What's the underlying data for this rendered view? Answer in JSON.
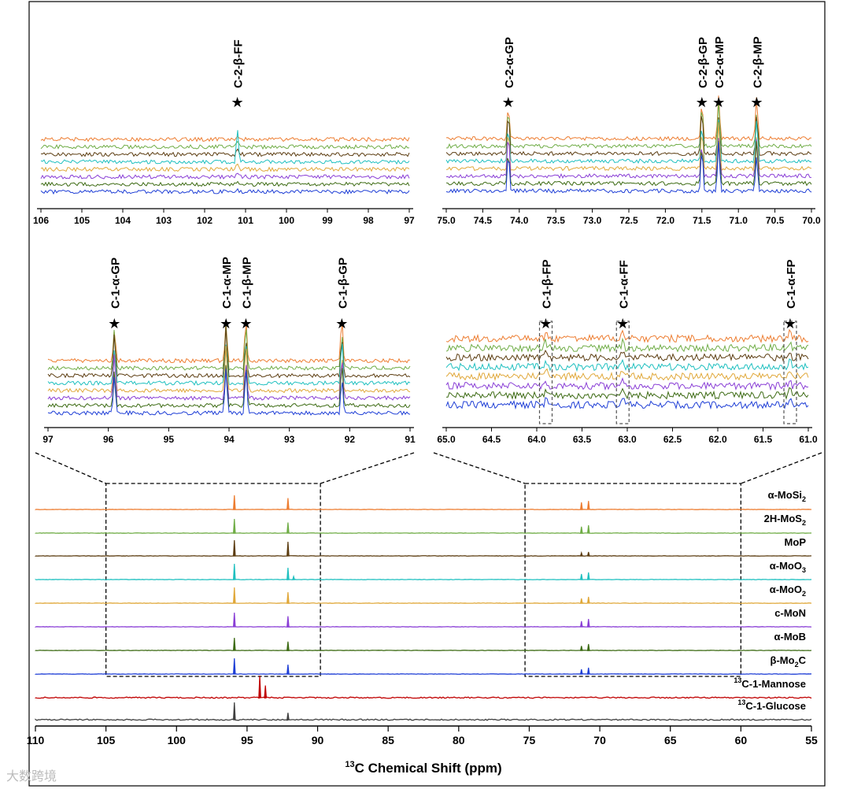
{
  "figure": {
    "xlabel_sup": "13",
    "xlabel_main": "C Chemical Shift (ppm)",
    "watermark": "大数跨境"
  },
  "chart_data": [
    {
      "type": "line",
      "panel": "main",
      "xlim": [
        110,
        55
      ],
      "xticks": [
        110,
        105,
        100,
        95,
        90,
        85,
        80,
        75,
        70,
        65,
        60,
        55
      ],
      "xlabel": "13C Chemical Shift (ppm)",
      "series": [
        {
          "name": "α-MoSi2",
          "label_main": "α-MoSi",
          "label_sub": "2",
          "color": "#ED7D31",
          "peaks": [
            [
              95.9,
              1.0
            ],
            [
              92.1,
              0.8
            ],
            [
              71.3,
              0.5
            ],
            [
              70.8,
              0.6
            ]
          ]
        },
        {
          "name": "2H-MoS2",
          "label_main": "2H-MoS",
          "label_sub": "2",
          "color": "#70AD47",
          "peaks": [
            [
              95.9,
              1.0
            ],
            [
              92.1,
              0.75
            ],
            [
              71.3,
              0.45
            ],
            [
              70.8,
              0.55
            ]
          ]
        },
        {
          "name": "MoP",
          "label_main": "MoP",
          "label_sub": "",
          "color": "#5C3D11",
          "peaks": [
            [
              95.9,
              1.0
            ],
            [
              92.1,
              0.9
            ],
            [
              71.3,
              0.2
            ],
            [
              70.8,
              0.25
            ]
          ]
        },
        {
          "name": "α-MoO3",
          "label_main": "α-MoO",
          "label_sub": "3",
          "color": "#20C0C0",
          "peaks": [
            [
              95.9,
              1.0
            ],
            [
              92.1,
              0.75
            ],
            [
              91.7,
              0.2
            ],
            [
              71.3,
              0.35
            ],
            [
              70.8,
              0.45
            ]
          ]
        },
        {
          "name": "α-MoO2",
          "label_main": "α-MoO",
          "label_sub": "2",
          "color": "#E0A83A",
          "peaks": [
            [
              95.9,
              1.0
            ],
            [
              92.1,
              0.7
            ],
            [
              71.3,
              0.3
            ],
            [
              70.8,
              0.4
            ]
          ]
        },
        {
          "name": "c-MoN",
          "label_main": "c-MoN",
          "label_sub": "",
          "color": "#8A3FD6",
          "peaks": [
            [
              95.9,
              1.0
            ],
            [
              92.1,
              0.75
            ],
            [
              71.3,
              0.4
            ],
            [
              70.8,
              0.55
            ]
          ]
        },
        {
          "name": "α-MoB",
          "label_main": "α-MoB",
          "label_sub": "",
          "color": "#3D6B14",
          "peaks": [
            [
              95.9,
              1.0
            ],
            [
              92.1,
              0.7
            ],
            [
              71.3,
              0.35
            ],
            [
              70.8,
              0.5
            ]
          ]
        },
        {
          "name": "β-Mo2C",
          "label_main": "β-Mo",
          "label_sub": "2",
          "label_tail": "C",
          "color": "#1F3FD6",
          "peaks": [
            [
              95.9,
              1.0
            ],
            [
              92.1,
              0.6
            ],
            [
              71.3,
              0.3
            ],
            [
              70.8,
              0.4
            ]
          ]
        },
        {
          "name": "13C-1-Mannose",
          "label_sup": "13",
          "label_main": "C-1-Mannose",
          "color": "#C00000",
          "peaks": [
            [
              94.1,
              1.0
            ],
            [
              93.7,
              0.55
            ]
          ]
        },
        {
          "name": "13C-1-Glucose",
          "label_sup": "13",
          "label_main": "C-1-Glucose",
          "color": "#404040",
          "peaks": [
            [
              95.9,
              1.0
            ],
            [
              92.1,
              0.4
            ]
          ]
        }
      ],
      "zoom_boxes": [
        [
          105,
          89.8
        ],
        [
          75.3,
          60
        ]
      ]
    },
    {
      "type": "line",
      "panel": "inset-c2-beta-ff",
      "xlim": [
        106,
        97
      ],
      "xticks": [
        106,
        105,
        104,
        103,
        102,
        101,
        100,
        99,
        98,
        97
      ],
      "annotations": [
        {
          "label": "C-2-β-FF",
          "x": 101.2
        }
      ]
    },
    {
      "type": "line",
      "panel": "inset-c2-glucose-mannose",
      "xlim": [
        75.0,
        70.0
      ],
      "xticks": [
        "75.0",
        "74.5",
        "74.0",
        "73.5",
        "73.0",
        "72.5",
        "72.0",
        "71.5",
        "71.0",
        "70.5",
        "70.0"
      ],
      "annotations": [
        {
          "label": "C-2-α-GP",
          "x": 74.15
        },
        {
          "label": "C-2-β-GP",
          "x": 71.5
        },
        {
          "label": "C-2-α-MP",
          "x": 71.27
        },
        {
          "label": "C-2-β-MP",
          "x": 70.75
        }
      ]
    },
    {
      "type": "line",
      "panel": "inset-c1-pyranose",
      "xlim": [
        97,
        91
      ],
      "xticks": [
        97,
        96,
        95,
        94,
        93,
        92,
        91
      ],
      "annotations": [
        {
          "label": "C-1-α-GP",
          "x": 95.9
        },
        {
          "label": "C-1-α-MP",
          "x": 94.05
        },
        {
          "label": "C-1-β-MP",
          "x": 93.72
        },
        {
          "label": "C-1-β-GP",
          "x": 92.13
        }
      ]
    },
    {
      "type": "line",
      "panel": "inset-c1-furanose",
      "xlim": [
        65.0,
        61.0
      ],
      "xticks": [
        "65.0",
        "64.5",
        "64.0",
        "63.5",
        "63.0",
        "62.5",
        "62.0",
        "61.5",
        "61.0"
      ],
      "annotations": [
        {
          "label": "C-1-β-FP",
          "x": 63.9
        },
        {
          "label": "C-1-α-FF",
          "x": 63.05
        },
        {
          "label": "C-1-α-FP",
          "x": 61.2
        }
      ]
    }
  ]
}
